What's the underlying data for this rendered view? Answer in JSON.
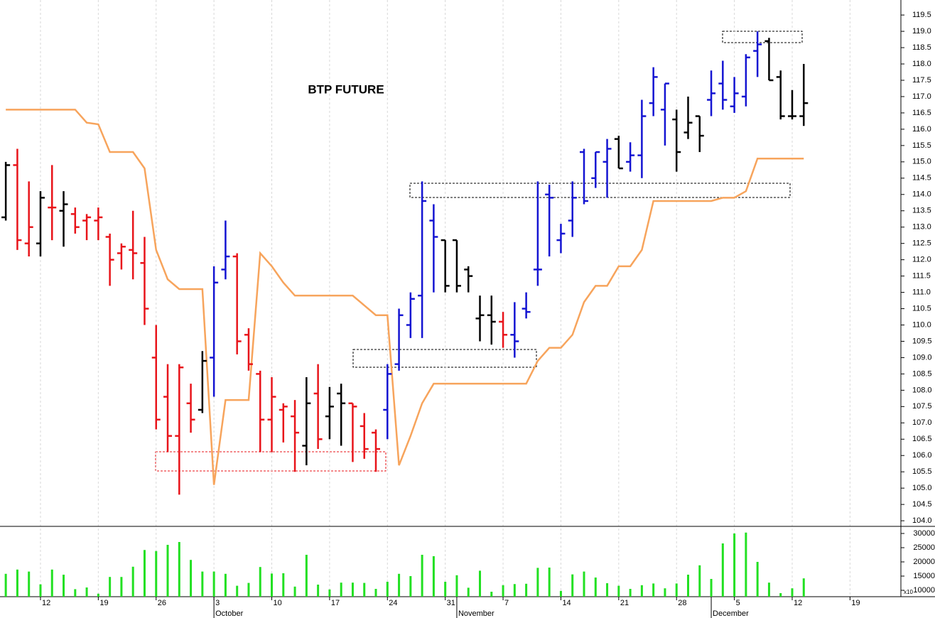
{
  "chart_data": {
    "type": "ohlc",
    "title": "BTP FUTURE",
    "x": [
      -3,
      -2,
      -1,
      0,
      1,
      2,
      3,
      4,
      5,
      6,
      7,
      8,
      9,
      10,
      11,
      12,
      13,
      14,
      15,
      16,
      17,
      18,
      19,
      20,
      21,
      22,
      23,
      24,
      25,
      26,
      27,
      28,
      29,
      30,
      31,
      32,
      33,
      34,
      35,
      36,
      37,
      38,
      39,
      40,
      41,
      42,
      43,
      44,
      45,
      46,
      47,
      48,
      49,
      50,
      51,
      52,
      53,
      54,
      55,
      56,
      57,
      58,
      59,
      60,
      61,
      62,
      63,
      64,
      65,
      66
    ],
    "open": [
      113.3,
      114.9,
      112.5,
      112.5,
      113.6,
      113.5,
      113.4,
      113.2,
      113.2,
      112.7,
      112.2,
      112.3,
      111.9,
      109.0,
      107.8,
      106.6,
      107.6,
      107.4,
      109.0,
      111.7,
      112.1,
      109.7,
      108.5,
      107.1,
      107.4,
      107.2,
      106.3,
      107.9,
      107.2,
      107.9,
      107.6,
      106.9,
      106.7,
      107.4,
      108.8,
      110.0,
      110.9,
      113.2,
      112.6,
      112.6,
      111.7,
      110.2,
      110.3,
      110.1,
      109.7,
      110.5,
      111.7,
      114.0,
      112.6,
      113.2,
      115.3,
      114.5,
      115.0,
      115.7,
      115.0,
      115.2,
      116.8,
      116.6,
      116.3,
      115.9,
      116.4,
      116.9,
      117.4,
      116.7,
      117.0,
      118.4,
      118.7,
      117.6,
      116.4,
      116.4
    ],
    "high": [
      115.0,
      115.4,
      114.4,
      114.1,
      114.9,
      114.1,
      113.6,
      113.4,
      113.6,
      112.8,
      112.5,
      113.5,
      112.7,
      110.0,
      108.8,
      108.8,
      108.2,
      109.2,
      111.8,
      113.2,
      112.2,
      109.9,
      108.6,
      108.4,
      107.6,
      107.7,
      108.4,
      108.8,
      108.1,
      108.2,
      107.6,
      107.3,
      106.8,
      108.8,
      110.5,
      111.0,
      114.4,
      113.7,
      112.6,
      112.6,
      111.8,
      110.9,
      110.9,
      110.4,
      110.7,
      111.0,
      114.4,
      114.3,
      113.1,
      114.4,
      115.4,
      115.3,
      115.7,
      115.8,
      115.6,
      116.9,
      117.9,
      117.4,
      116.6,
      117.0,
      116.4,
      117.8,
      118.1,
      117.6,
      118.3,
      119.0,
      118.8,
      117.8,
      117.2,
      118.0
    ],
    "low": [
      113.2,
      112.3,
      112.1,
      112.1,
      112.6,
      112.4,
      112.8,
      112.6,
      112.6,
      111.2,
      111.7,
      111.4,
      110.0,
      106.8,
      106.1,
      104.8,
      106.7,
      107.3,
      107.8,
      111.4,
      109.1,
      108.6,
      106.1,
      106.1,
      106.4,
      105.5,
      105.7,
      106.2,
      106.5,
      106.3,
      105.8,
      105.9,
      105.5,
      106.5,
      108.6,
      109.6,
      109.6,
      111.0,
      111.0,
      111.0,
      111.0,
      109.5,
      109.4,
      109.3,
      109.0,
      110.2,
      111.2,
      112.1,
      112.2,
      112.7,
      113.7,
      114.2,
      113.9,
      114.8,
      114.7,
      114.5,
      116.4,
      115.5,
      114.7,
      115.7,
      115.3,
      116.4,
      116.6,
      116.5,
      116.7,
      117.6,
      117.5,
      116.3,
      116.3,
      116.1
    ],
    "close": [
      114.9,
      112.6,
      113.0,
      113.9,
      113.6,
      113.7,
      113.0,
      113.3,
      113.3,
      112.0,
      112.4,
      112.2,
      110.5,
      107.1,
      106.6,
      108.7,
      107.1,
      108.9,
      111.3,
      112.1,
      109.5,
      108.8,
      107.1,
      107.8,
      107.5,
      106.7,
      107.6,
      106.5,
      107.5,
      107.6,
      107.5,
      106.2,
      106.2,
      108.5,
      110.3,
      110.8,
      113.8,
      112.7,
      111.2,
      111.2,
      111.5,
      110.3,
      110.1,
      109.7,
      109.5,
      110.4,
      111.7,
      113.9,
      112.8,
      113.9,
      113.8,
      115.3,
      115.4,
      114.8,
      115.2,
      116.4,
      117.6,
      117.4,
      115.3,
      116.2,
      115.8,
      117.1,
      116.9,
      117.1,
      118.2,
      118.6,
      117.5,
      116.4,
      116.4,
      116.8
    ],
    "bar_colors": [
      "#000",
      "#e8141a",
      "#e8141a",
      "#000",
      "#e8141a",
      "#000",
      "#e8141a",
      "#e8141a",
      "#e8141a",
      "#e8141a",
      "#e8141a",
      "#e8141a",
      "#e8141a",
      "#e8141a",
      "#e8141a",
      "#e8141a",
      "#e8141a",
      "#000",
      "#1414d2",
      "#1414d2",
      "#e8141a",
      "#e8141a",
      "#e8141a",
      "#e8141a",
      "#e8141a",
      "#e8141a",
      "#000",
      "#e8141a",
      "#000",
      "#000",
      "#e8141a",
      "#e8141a",
      "#e8141a",
      "#1414d2",
      "#1414d2",
      "#1414d2",
      "#1414d2",
      "#1414d2",
      "#000",
      "#000",
      "#000",
      "#000",
      "#000",
      "#e8141a",
      "#1414d2",
      "#1414d2",
      "#1414d2",
      "#1414d2",
      "#1414d2",
      "#1414d2",
      "#1414d2",
      "#1414d2",
      "#1414d2",
      "#000",
      "#1414d2",
      "#1414d2",
      "#1414d2",
      "#1414d2",
      "#000",
      "#000",
      "#000",
      "#1414d2",
      "#1414d2",
      "#1414d2",
      "#1414d2",
      "#1414d2",
      "#000",
      "#000",
      "#000",
      "#000"
    ],
    "line": {
      "color": "#f7a45c",
      "values": [
        116.6,
        116.6,
        116.6,
        116.6,
        116.6,
        116.6,
        116.6,
        116.2,
        116.15,
        115.3,
        115.3,
        115.3,
        114.8,
        112.3,
        111.4,
        111.1,
        111.1,
        111.1,
        105.1,
        107.7,
        107.7,
        107.7,
        112.2,
        111.8,
        111.3,
        110.9,
        110.9,
        110.9,
        110.9,
        110.9,
        110.9,
        110.6,
        110.3,
        110.3,
        105.7,
        106.6,
        107.6,
        108.2,
        108.2,
        108.2,
        108.2,
        108.2,
        108.2,
        108.2,
        108.2,
        108.2,
        108.9,
        109.3,
        109.3,
        109.7,
        110.7,
        111.2,
        111.2,
        111.8,
        111.8,
        112.3,
        113.8,
        113.8,
        113.8,
        113.8,
        113.8,
        113.8,
        113.9,
        113.9,
        114.1,
        115.1,
        115.1,
        115.1,
        115.1,
        115.1
      ]
    },
    "xlim": [
      -3.5,
      74.4
    ],
    "xticks": [
      {
        "value": 0,
        "label": "12"
      },
      {
        "value": 5,
        "label": "19"
      },
      {
        "value": 10,
        "label": "26"
      },
      {
        "value": 15,
        "label": "3"
      },
      {
        "value": 20,
        "label": "10"
      },
      {
        "value": 25,
        "label": "17"
      },
      {
        "value": 30,
        "label": "24"
      },
      {
        "value": 35,
        "label": "31"
      },
      {
        "value": 40,
        "label": "7"
      },
      {
        "value": 45,
        "label": "14"
      },
      {
        "value": 50,
        "label": "21"
      },
      {
        "value": 55,
        "label": "28"
      },
      {
        "value": 60,
        "label": "5"
      },
      {
        "value": 65,
        "label": "12"
      },
      {
        "value": 70,
        "label": "19"
      }
    ],
    "month_ticks": [
      {
        "value": 15,
        "label": "October"
      },
      {
        "value": 36,
        "label": "November"
      },
      {
        "value": 58,
        "label": "December"
      }
    ],
    "ylim": [
      103.85,
      119.96
    ],
    "yticks": [
      {
        "value": 104,
        "label": "104.0"
      },
      104.5,
      {
        "value": 105,
        "label": "105.0"
      },
      105.5,
      {
        "value": 106,
        "label": "106.0"
      },
      106.5,
      {
        "value": 107,
        "label": "107.0"
      },
      107.5,
      {
        "value": 108,
        "label": "108.0"
      },
      108.5,
      {
        "value": 109,
        "label": "109.0"
      },
      109.5,
      {
        "value": 110,
        "label": "110.0"
      },
      110.5,
      {
        "value": 111,
        "label": "111.0"
      },
      111.5,
      {
        "value": 112,
        "label": "112.0"
      },
      112.5,
      {
        "value": 113,
        "label": "113.0"
      },
      113.5,
      {
        "value": 114,
        "label": "114.0"
      },
      114.5,
      {
        "value": 115,
        "label": "115.0"
      },
      115.5,
      {
        "value": 116,
        "label": "116.0"
      },
      116.5,
      {
        "value": 117,
        "label": "117.0"
      },
      117.5,
      {
        "value": 118,
        "label": "118.0"
      },
      118.5,
      {
        "value": 119,
        "label": "119.0"
      },
      119.5
    ],
    "grid": true,
    "volume": {
      "color": "#22e022",
      "unit": "x10",
      "values": [
        15800,
        17300,
        16600,
        12100,
        17300,
        15500,
        10400,
        11000,
        8800,
        14700,
        14700,
        18300,
        24200,
        23800,
        26000,
        27000,
        20700,
        16600,
        16600,
        15800,
        11600,
        12600,
        18200,
        15900,
        16000,
        11300,
        22500,
        12000,
        10300,
        12700,
        12700,
        12600,
        10500,
        13000,
        15800,
        15000,
        22500,
        22000,
        13000,
        15300,
        10900,
        16900,
        9500,
        11800,
        12200,
        12300,
        17900,
        18000,
        9800,
        15600,
        16600,
        14500,
        12500,
        11600,
        10500,
        11800,
        12400,
        10700,
        12400,
        15500,
        18800,
        14000,
        26500,
        30000,
        30300,
        20000,
        12700,
        9000,
        10700,
        14200
      ],
      "ylim": [
        7750,
        32500
      ],
      "yticks": [
        10000,
        15000,
        20000,
        25000,
        30000
      ]
    }
  }
}
